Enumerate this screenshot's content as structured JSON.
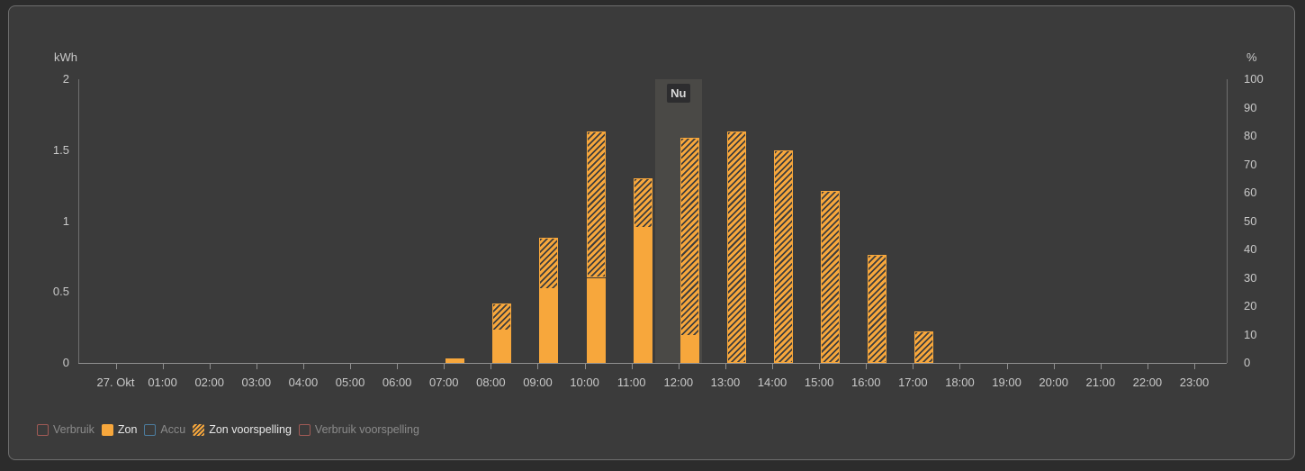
{
  "colors": {
    "orange": "#f7a73c",
    "hatch_stripe": "#3d3d3d",
    "red_outline": "#a05a55",
    "blue_outline": "#4c7c9e",
    "card_bg": "#3b3b3b",
    "now_band": "#4a4946",
    "axis_text": "#c9c9c9"
  },
  "chart_data": {
    "type": "bar",
    "title": "",
    "y_left": {
      "title": "kWh",
      "ticks": [
        0,
        0.5,
        1,
        1.5,
        2
      ],
      "min": 0,
      "max": 2
    },
    "y_right": {
      "title": "%",
      "ticks": [
        0,
        10,
        20,
        30,
        40,
        50,
        60,
        70,
        80,
        90,
        100
      ],
      "min": 0,
      "max": 100
    },
    "x_labels": [
      "27. Okt",
      "01:00",
      "02:00",
      "03:00",
      "04:00",
      "05:00",
      "06:00",
      "07:00",
      "08:00",
      "09:00",
      "10:00",
      "11:00",
      "12:00",
      "13:00",
      "14:00",
      "15:00",
      "16:00",
      "17:00",
      "18:00",
      "19:00",
      "20:00",
      "21:00",
      "22:00",
      "23:00"
    ],
    "series": [
      {
        "name": "Zon",
        "style": "solid",
        "values": [
          0,
          0,
          0,
          0,
          0,
          0,
          0,
          0.03,
          0.23,
          0.52,
          0.6,
          0.95,
          0.19,
          0,
          0,
          0,
          0,
          0,
          0,
          0,
          0,
          0,
          0,
          0
        ]
      },
      {
        "name": "Zon voorspelling",
        "style": "hatched",
        "values": [
          0,
          0,
          0,
          0,
          0,
          0,
          0,
          0,
          0.19,
          0.36,
          1.03,
          0.35,
          1.4,
          1.63,
          1.5,
          1.21,
          0.76,
          0.22,
          0,
          0,
          0,
          0,
          0,
          0
        ]
      }
    ],
    "stacked": true,
    "grid": false,
    "legend_position": "bottom-left",
    "now_marker": {
      "label": "Nu",
      "hour": 12
    }
  },
  "legend": {
    "items": [
      {
        "label": "Verbruik",
        "swatch": "outline-red",
        "active": false
      },
      {
        "label": "Zon",
        "swatch": "filled-orange",
        "active": true
      },
      {
        "label": "Accu",
        "swatch": "outline-blue",
        "active": false
      },
      {
        "label": "Zon voorspelling",
        "swatch": "hatched-orange",
        "active": true
      },
      {
        "label": "Verbruik voorspelling",
        "swatch": "outline-red",
        "active": false
      }
    ]
  }
}
